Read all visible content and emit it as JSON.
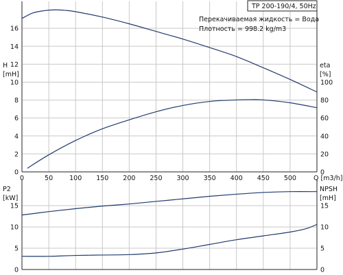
{
  "chart_data": {
    "type": "line",
    "title": "TP 200-190/4, 50Hz",
    "annotations": [
      "Перекачиваемая жидкость = Вода",
      "Плотность = 998.2 kg/m3"
    ],
    "xlabel": "Q [m3/h]",
    "x_ticks": [
      "0",
      "50",
      "100",
      "150",
      "200",
      "250",
      "300",
      "350",
      "400",
      "450",
      "500"
    ],
    "xlim": [
      0,
      550
    ],
    "grid": true,
    "colors": {
      "curve": "#1f3a6e",
      "grid": "#c8c8c8",
      "axis": "#222222"
    },
    "charts": [
      {
        "id": "top",
        "left_axis": {
          "label_lines": [
            "H",
            "[mH]"
          ],
          "ylim": [
            0,
            19
          ],
          "ticks": [
            "0",
            "2",
            "4",
            "6",
            "8",
            "10",
            "12",
            "14",
            "16"
          ]
        },
        "right_axis": {
          "label_lines": [
            "eta",
            "[%]"
          ],
          "ylim": [
            0,
            190
          ],
          "ticks": [
            "0",
            "20",
            "40",
            "60",
            "80",
            "100"
          ]
        },
        "series": [
          {
            "axis": "left",
            "x": [
              0,
              20,
              40,
              60,
              80,
              100,
              150,
              200,
              250,
              300,
              350,
              400,
              450,
              500,
              550
            ],
            "y": [
              17.1,
              17.7,
              17.95,
              18.05,
              18.0,
              17.85,
              17.25,
              16.5,
              15.65,
              14.8,
              13.85,
              12.85,
              11.6,
              10.3,
              8.9
            ]
          },
          {
            "axis": "right",
            "x": [
              10,
              50,
              100,
              150,
              200,
              250,
              300,
              350,
              400,
              425,
              450,
              500,
              550
            ],
            "y": [
              4,
              19,
              35,
              48,
              58,
              67,
              74,
              78.5,
              80.2,
              80.5,
              80.2,
              77,
              71.5
            ]
          }
        ]
      },
      {
        "id": "bottom",
        "left_axis": {
          "label_lines": [
            "P2",
            "[kW]"
          ],
          "ylim": [
            0,
            21
          ],
          "ticks": [
            "0",
            "5",
            "10",
            "15"
          ]
        },
        "right_axis": {
          "label_lines": [
            "NPSH",
            "[mH]"
          ],
          "ylim": [
            0,
            21
          ],
          "ticks": [
            "0",
            "5",
            "10",
            "15"
          ]
        },
        "series": [
          {
            "axis": "left",
            "x": [
              0,
              50,
              100,
              150,
              200,
              250,
              300,
              350,
              400,
              450,
              500,
              550
            ],
            "y": [
              12.8,
              13.6,
              14.3,
              14.9,
              15.4,
              16.0,
              16.6,
              17.2,
              17.7,
              18.1,
              18.3,
              18.3
            ]
          },
          {
            "axis": "left",
            "x": [
              0,
              50,
              100,
              150,
              200,
              250,
              300,
              350,
              400,
              450,
              500,
              530,
              550
            ],
            "y": [
              3.1,
              3.1,
              3.3,
              3.4,
              3.5,
              3.9,
              4.8,
              5.9,
              7.0,
              7.9,
              8.8,
              9.6,
              10.6
            ]
          }
        ]
      }
    ]
  }
}
